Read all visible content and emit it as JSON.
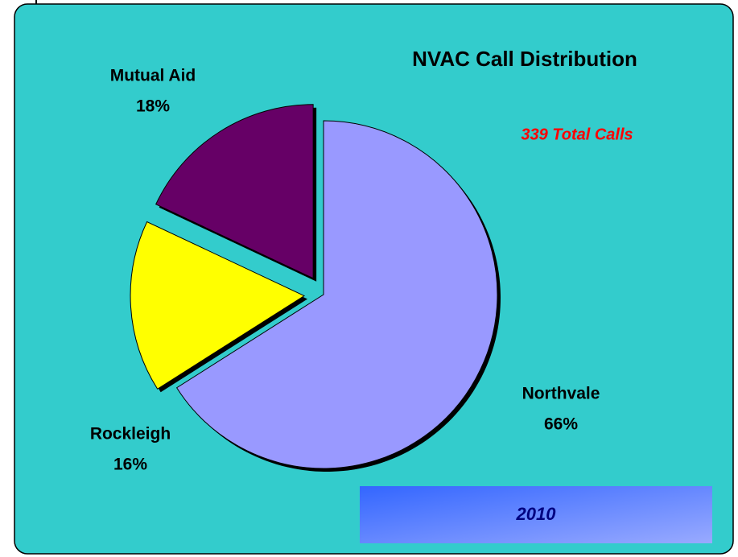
{
  "chart_data": {
    "type": "pie",
    "title": "NVAC Call Distribution",
    "subtitle": "339 Total Calls",
    "annotation": "2010",
    "categories": [
      "Northvale",
      "Rockleigh",
      "Mutual Aid"
    ],
    "values": [
      66,
      16,
      18
    ],
    "value_labels": [
      "66%",
      "16%",
      "18%"
    ],
    "colors": [
      "#9999ff",
      "#ffff00",
      "#660066"
    ]
  }
}
